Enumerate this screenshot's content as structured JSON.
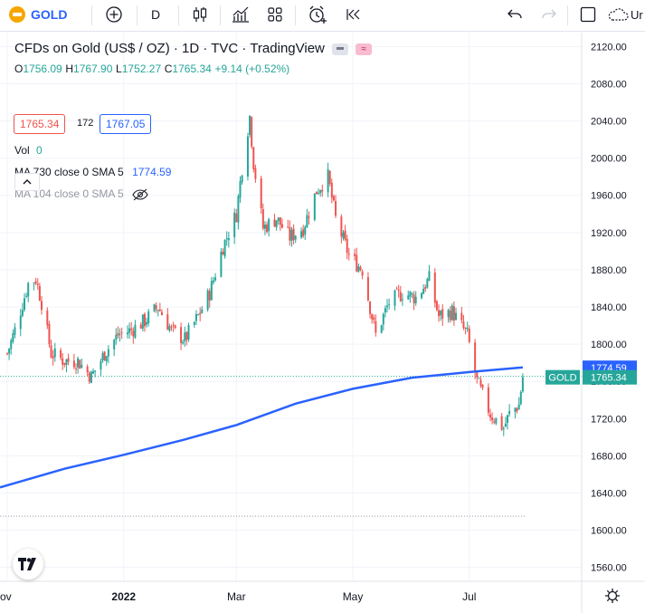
{
  "toolbar": {
    "symbol": "GOLD",
    "interval": "D",
    "undo_icon": "undo-icon",
    "redo_icon": "redo-icon",
    "cut_label": "Ur"
  },
  "legend": {
    "title": "CFDs on Gold (US$ / OZ) · 1D · TVC · TradingView",
    "ohlc": {
      "o_label": "O",
      "o": "1756.09",
      "h_label": "H",
      "h": "1767.90",
      "l_label": "L",
      "l": "1752.27",
      "c_label": "C",
      "c": "1765.34",
      "change": "+9.14 (+0.52%)"
    },
    "bid": "1765.34",
    "spread": "172",
    "ask": "1767.05",
    "vol_label": "Vol",
    "vol_value": "0",
    "ma1_label": "MA 730 close 0 SMA 5",
    "ma1_value": "1774.59",
    "ma2_label": "MA 104 close 0 SMA 5"
  },
  "colors": {
    "up": "#26a69a",
    "down": "#ef5350",
    "ma": "#2962ff",
    "price_label": "#26a69a",
    "ma_label": "#2962ff",
    "gold_badge": "#f7a600"
  },
  "chart_data": {
    "type": "candlestick",
    "symbol_tag": "GOLD",
    "last_price": 1765.34,
    "ma_last": 1774.59,
    "ylim": [
      1545,
      2135
    ],
    "y_ticks": [
      "2120.00",
      "2080.00",
      "2040.00",
      "2000.00",
      "1960.00",
      "1920.00",
      "1880.00",
      "1840.00",
      "1800.00",
      "1760.00",
      "1720.00",
      "1680.00",
      "1640.00",
      "1600.00",
      "1560.00"
    ],
    "x_labels": [
      "ov",
      "2022",
      "Mar",
      "May",
      "Jul"
    ],
    "x_label_dates": [
      "2021-11-01",
      "2022-01-01",
      "2022-03-01",
      "2022-05-01",
      "2022-07-01"
    ],
    "date_range": [
      "2021-11-01",
      "2022-07-30"
    ],
    "close_path": [
      [
        "2021-11-01",
        1790
      ],
      [
        "2021-11-05",
        1815
      ],
      [
        "2021-11-12",
        1865
      ],
      [
        "2021-11-16",
        1870
      ],
      [
        "2021-11-19",
        1845
      ],
      [
        "2021-11-24",
        1790
      ],
      [
        "2021-12-01",
        1782
      ],
      [
        "2021-12-08",
        1782
      ],
      [
        "2021-12-15",
        1765
      ],
      [
        "2021-12-22",
        1790
      ],
      [
        "2021-12-29",
        1810
      ],
      [
        "2022-01-05",
        1815
      ],
      [
        "2022-01-12",
        1825
      ],
      [
        "2022-01-19",
        1840
      ],
      [
        "2022-01-26",
        1815
      ],
      [
        "2022-02-02",
        1805
      ],
      [
        "2022-02-09",
        1830
      ],
      [
        "2022-02-15",
        1855
      ],
      [
        "2022-02-22",
        1905
      ],
      [
        "2022-03-01",
        1940
      ],
      [
        "2022-03-04",
        1990
      ],
      [
        "2022-03-08",
        2045
      ],
      [
        "2022-03-10",
        1995
      ],
      [
        "2022-03-15",
        1925
      ],
      [
        "2022-03-22",
        1935
      ],
      [
        "2022-03-29",
        1915
      ],
      [
        "2022-04-05",
        1925
      ],
      [
        "2022-04-12",
        1965
      ],
      [
        "2022-04-18",
        1980
      ],
      [
        "2022-04-22",
        1935
      ],
      [
        "2022-04-29",
        1895
      ],
      [
        "2022-05-06",
        1880
      ],
      [
        "2022-05-13",
        1810
      ],
      [
        "2022-05-20",
        1845
      ],
      [
        "2022-05-27",
        1855
      ],
      [
        "2022-06-03",
        1850
      ],
      [
        "2022-06-10",
        1870
      ],
      [
        "2022-06-15",
        1830
      ],
      [
        "2022-06-22",
        1835
      ],
      [
        "2022-06-30",
        1810
      ],
      [
        "2022-07-05",
        1760
      ],
      [
        "2022-07-12",
        1725
      ],
      [
        "2022-07-19",
        1710
      ],
      [
        "2022-07-22",
        1725
      ],
      [
        "2022-07-27",
        1735
      ],
      [
        "2022-07-29",
        1765
      ]
    ],
    "ma_path": [
      [
        "2021-11-01",
        1646
      ],
      [
        "2021-12-01",
        1666
      ],
      [
        "2022-01-01",
        1681
      ],
      [
        "2022-02-01",
        1697
      ],
      [
        "2022-03-01",
        1713
      ],
      [
        "2022-04-01",
        1736
      ],
      [
        "2022-05-01",
        1752
      ],
      [
        "2022-06-01",
        1764
      ],
      [
        "2022-07-01",
        1770
      ],
      [
        "2022-07-29",
        1775
      ]
    ],
    "dotted_levels": [
      1765.34,
      1615
    ]
  }
}
